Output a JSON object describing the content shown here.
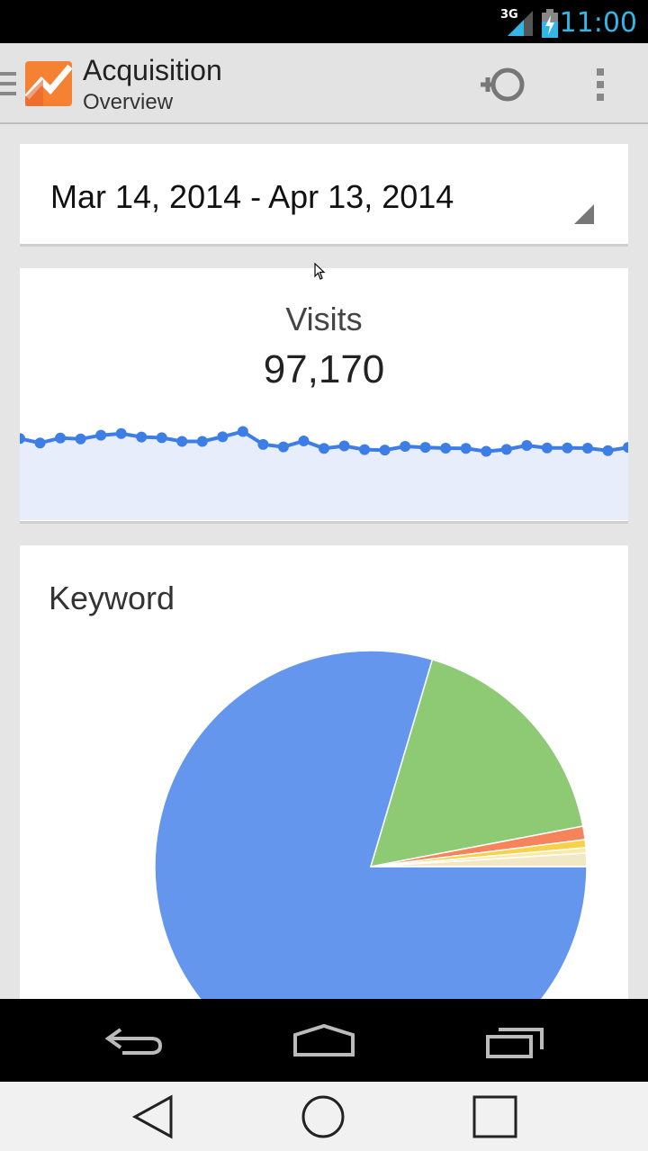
{
  "status_bar": {
    "network_type": "3G",
    "time": "11:00",
    "colors": {
      "accent": "#33b5e5"
    }
  },
  "action_bar": {
    "title": "Acquisition",
    "subtitle": "Overview",
    "icons": [
      "drawer-icon",
      "analytics-logo",
      "add-segment-icon",
      "overflow-menu-icon"
    ]
  },
  "date_range": {
    "label": "Mar 14, 2014 - Apr 13, 2014"
  },
  "visits": {
    "label": "Visits",
    "value": "97,170"
  },
  "keyword": {
    "label": "Keyword"
  },
  "chart_data": [
    {
      "type": "area",
      "name": "visits-sparkline",
      "x": [
        1,
        2,
        3,
        4,
        5,
        6,
        7,
        8,
        9,
        10,
        11,
        12,
        13,
        14,
        15,
        16,
        17,
        18,
        19,
        20,
        21,
        22,
        23,
        24,
        25,
        26,
        27,
        28,
        29,
        30,
        31
      ],
      "values": [
        330,
        312,
        332,
        328,
        343,
        350,
        336,
        333,
        318,
        318,
        337,
        358,
        306,
        296,
        320,
        290,
        300,
        285,
        283,
        298,
        294,
        291,
        290,
        278,
        286,
        302,
        292,
        292,
        291,
        281,
        294
      ],
      "ylim": [
        0,
        400
      ],
      "color": "#3d7ee6",
      "fill": "#e8edfb"
    },
    {
      "type": "pie",
      "name": "keyword-pie",
      "values": [
        79.6,
        17.4,
        1.0,
        0.6,
        0.4,
        1.0
      ],
      "colors": [
        "#6496ee",
        "#8ec974",
        "#f5835c",
        "#f8d14a",
        "#fbe9a5",
        "#f2e8c6"
      ]
    }
  ]
}
